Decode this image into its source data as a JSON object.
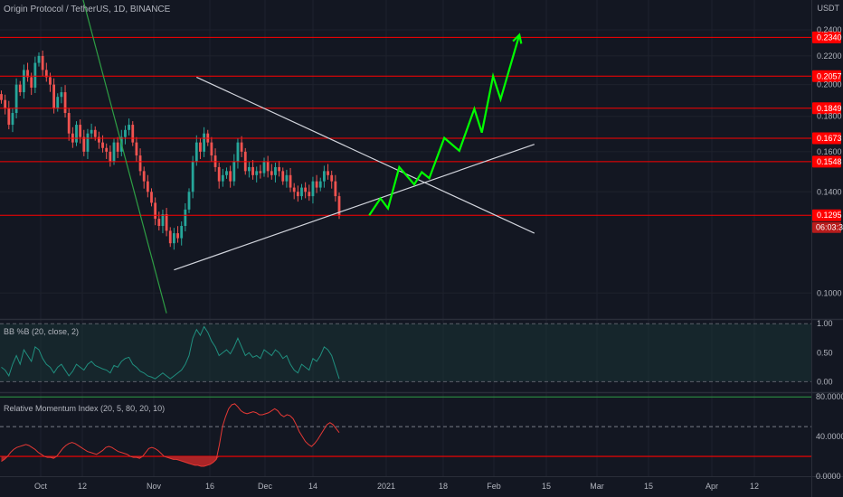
{
  "header": {
    "title": "Origin Protocol / TetherUS, 1D, BINANCE",
    "quote_currency": "USDT"
  },
  "colors": {
    "background": "#131722",
    "grid": "#1e222d",
    "up": "#26a69a",
    "down": "#ef5350",
    "level_line": "#ff0000",
    "projection": "#00ff00",
    "trend_green": "#2e9e44",
    "trend_white": "#d1d4dc",
    "bb_line": "#208f7f",
    "rmi_line": "#e53935"
  },
  "chart_data": [
    {
      "type": "candlestick",
      "title": "Origin Protocol / TetherUS, 1D, BINANCE",
      "y_scale": "log",
      "ylim": [
        0.092,
        0.265
      ],
      "x_tick_labels": [
        "Oct",
        "12",
        "Nov",
        "16",
        "Dec",
        "14",
        "2021",
        "18",
        "Feb",
        "15",
        "Mar",
        "15",
        "Apr",
        "12"
      ],
      "y_tick_labels": [
        {
          "value": 0.24,
          "label": "0.2400"
        },
        {
          "value": 0.22,
          "label": "0.2200"
        },
        {
          "value": 0.2,
          "label": "0.2000"
        },
        {
          "value": 0.18,
          "label": "0.1800"
        },
        {
          "value": 0.16,
          "label": "0.1600"
        },
        {
          "value": 0.14,
          "label": "0.1400"
        },
        {
          "value": 0.1,
          "label": "0.1000"
        }
      ],
      "horizontal_levels": [
        {
          "value": 0.234,
          "label": "0.2340"
        },
        {
          "value": 0.2057,
          "label": "0.2057"
        },
        {
          "value": 0.1849,
          "label": "0.1849"
        },
        {
          "value": 0.1673,
          "label": "0.1673"
        },
        {
          "value": 0.1548,
          "label": "0.1548"
        },
        {
          "value": 0.1295,
          "label": "0.1295"
        }
      ],
      "last_price": {
        "value": 0.1295,
        "label": "0.1295",
        "countdown": "06:03:38"
      },
      "closes": [
        0.19,
        0.185,
        0.175,
        0.182,
        0.2,
        0.195,
        0.21,
        0.205,
        0.198,
        0.215,
        0.22,
        0.21,
        0.205,
        0.2,
        0.185,
        0.192,
        0.195,
        0.182,
        0.17,
        0.165,
        0.175,
        0.168,
        0.16,
        0.17,
        0.172,
        0.168,
        0.165,
        0.162,
        0.16,
        0.155,
        0.165,
        0.16,
        0.168,
        0.172,
        0.175,
        0.165,
        0.158,
        0.15,
        0.145,
        0.14,
        0.135,
        0.128,
        0.125,
        0.13,
        0.123,
        0.118,
        0.122,
        0.12,
        0.125,
        0.132,
        0.14,
        0.155,
        0.165,
        0.16,
        0.17,
        0.165,
        0.158,
        0.152,
        0.145,
        0.148,
        0.15,
        0.145,
        0.155,
        0.165,
        0.16,
        0.15,
        0.152,
        0.148,
        0.15,
        0.149,
        0.155,
        0.15,
        0.148,
        0.152,
        0.15,
        0.145,
        0.148,
        0.142,
        0.14,
        0.138,
        0.142,
        0.14,
        0.138,
        0.145,
        0.142,
        0.145,
        0.15,
        0.148,
        0.145,
        0.138,
        0.1295
      ],
      "trendlines": [
        {
          "name": "descending-resistance",
          "color": "#d1d4dc",
          "from": {
            "bar": 52,
            "price": 0.205
          },
          "to": {
            "bar": 142,
            "price": 0.122
          }
        },
        {
          "name": "ascending-support",
          "color": "#d1d4dc",
          "from": {
            "bar": 46,
            "price": 0.108
          },
          "to": {
            "bar": 142,
            "price": 0.164
          }
        },
        {
          "name": "long-downtrend",
          "color": "#2e9e44",
          "from": {
            "bar": 21,
            "price": 0.275
          },
          "to": {
            "bar": 44,
            "price": 0.0935
          }
        }
      ],
      "projection_path": [
        {
          "bar": 98,
          "price": 0.1295
        },
        {
          "bar": 101,
          "price": 0.137
        },
        {
          "bar": 103,
          "price": 0.1325
        },
        {
          "bar": 106,
          "price": 0.152
        },
        {
          "bar": 110,
          "price": 0.1435
        },
        {
          "bar": 112,
          "price": 0.1495
        },
        {
          "bar": 114,
          "price": 0.1465
        },
        {
          "bar": 118,
          "price": 0.1675
        },
        {
          "bar": 122,
          "price": 0.1605
        },
        {
          "bar": 126,
          "price": 0.1845
        },
        {
          "bar": 128,
          "price": 0.1705
        },
        {
          "bar": 131,
          "price": 0.2057
        },
        {
          "bar": 133,
          "price": 0.1905
        },
        {
          "bar": 138,
          "price": 0.236
        }
      ]
    },
    {
      "type": "line",
      "title": "BB %B (20, close, 2)",
      "ylim": [
        -0.15,
        1.05
      ],
      "y_tick_labels": [
        {
          "value": 1.0,
          "label": "1.00"
        },
        {
          "value": 0.5,
          "label": "0.50"
        },
        {
          "value": 0.0,
          "label": "0.00"
        }
      ],
      "values": [
        0.25,
        0.2,
        0.1,
        0.3,
        0.45,
        0.3,
        0.55,
        0.45,
        0.35,
        0.6,
        0.55,
        0.4,
        0.3,
        0.25,
        0.15,
        0.25,
        0.3,
        0.2,
        0.1,
        0.18,
        0.3,
        0.25,
        0.2,
        0.3,
        0.35,
        0.28,
        0.25,
        0.22,
        0.2,
        0.15,
        0.28,
        0.25,
        0.35,
        0.4,
        0.42,
        0.3,
        0.25,
        0.18,
        0.15,
        0.1,
        0.08,
        0.05,
        0.1,
        0.15,
        0.1,
        0.05,
        0.1,
        0.15,
        0.2,
        0.3,
        0.45,
        0.75,
        0.9,
        0.8,
        0.95,
        0.85,
        0.7,
        0.6,
        0.45,
        0.5,
        0.55,
        0.48,
        0.6,
        0.75,
        0.6,
        0.45,
        0.5,
        0.42,
        0.45,
        0.4,
        0.55,
        0.5,
        0.45,
        0.55,
        0.5,
        0.4,
        0.45,
        0.3,
        0.2,
        0.15,
        0.3,
        0.25,
        0.2,
        0.4,
        0.35,
        0.45,
        0.6,
        0.55,
        0.45,
        0.25,
        0.05
      ]
    },
    {
      "type": "line",
      "title": "Relative Momentum Index (20, 5, 80, 20, 10)",
      "ylim": [
        0,
        82
      ],
      "y_tick_labels": [
        {
          "value": 80,
          "label": "80.0000"
        },
        {
          "value": 40,
          "label": "40.0000"
        },
        {
          "value": 0,
          "label": "0.0000"
        }
      ],
      "levels": [
        80,
        50,
        20
      ],
      "values": [
        15,
        17,
        20,
        24,
        27,
        29,
        30,
        31,
        32,
        31,
        29,
        27,
        24,
        22,
        20,
        19,
        19,
        18,
        20,
        24,
        28,
        31,
        33,
        34,
        33,
        31,
        29,
        27,
        25,
        24,
        23,
        22,
        24,
        26,
        29,
        30,
        29,
        27,
        25,
        24,
        23,
        22,
        20,
        19,
        19,
        18,
        20,
        24,
        28,
        29,
        28,
        26,
        23,
        20,
        19,
        18,
        17,
        17,
        16,
        15,
        14,
        13,
        12,
        11,
        11,
        10,
        10,
        11,
        12,
        14,
        17,
        32,
        50,
        60,
        68,
        72,
        73,
        70,
        66,
        64,
        63,
        64,
        65,
        64,
        62,
        62,
        63,
        64,
        66,
        68,
        66,
        62,
        60,
        62,
        61,
        58,
        52,
        45,
        40,
        35,
        32,
        30,
        33,
        37,
        42,
        47,
        52,
        54,
        52,
        48,
        44
      ]
    }
  ],
  "bottom_axis": {
    "labels": [
      "Oct",
      "12",
      "Nov",
      "16",
      "Dec",
      "14",
      "2021",
      "18",
      "Feb",
      "15",
      "Mar",
      "15",
      "Apr",
      "12"
    ]
  }
}
